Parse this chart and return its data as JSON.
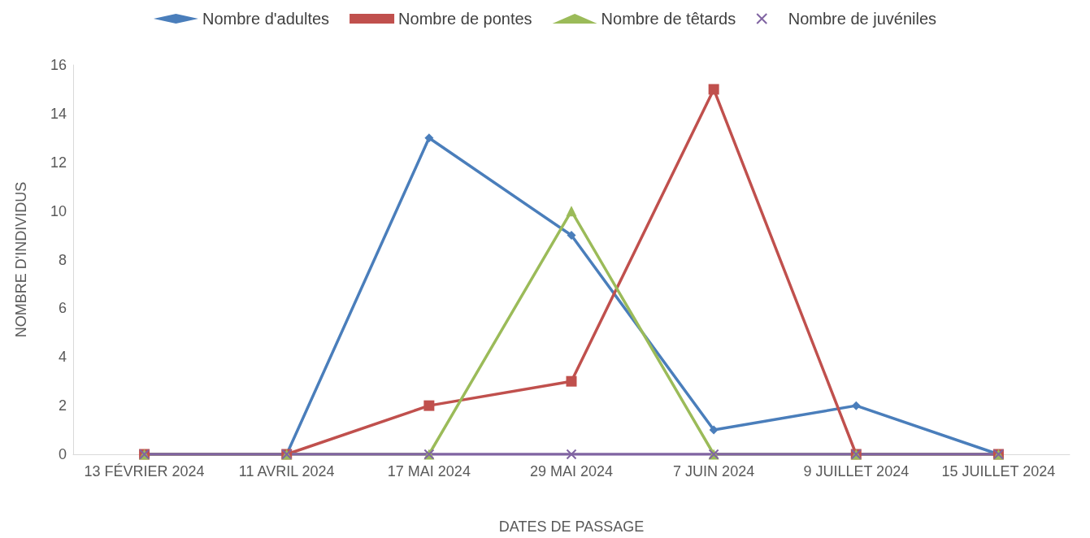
{
  "chart_data": {
    "type": "line",
    "xlabel": "DATES DE PASSAGE",
    "ylabel": "NOMBRE D'INDIVIDUS",
    "categories": [
      "13 FÉVRIER 2024",
      "11 AVRIL 2024",
      "17 MAI 2024",
      "29 MAI 2024",
      "7 JUIN 2024",
      "9 JUILLET 2024",
      "15 JUILLET 2024"
    ],
    "series": [
      {
        "name": "Nombre d'adultes",
        "color": "#4a7ebb",
        "marker": "diamond",
        "values": [
          0,
          0,
          13,
          9,
          1,
          2,
          0
        ]
      },
      {
        "name": "Nombre de pontes",
        "color": "#c0504d",
        "marker": "square",
        "values": [
          0,
          0,
          2,
          3,
          15,
          0,
          0
        ]
      },
      {
        "name": "Nombre de têtards",
        "color": "#9bbb59",
        "marker": "triangle",
        "values": [
          0,
          0,
          0,
          10,
          0,
          0,
          0
        ]
      },
      {
        "name": "Nombre de juvéniles",
        "color": "#8064a2",
        "marker": "cross",
        "values": [
          0,
          0,
          0,
          0,
          0,
          0,
          0
        ]
      }
    ],
    "ylim": [
      0,
      16
    ],
    "yticks": [
      0,
      2,
      4,
      6,
      8,
      10,
      12,
      14,
      16
    ],
    "grid": false,
    "legend": "top",
    "line_style": "solid"
  }
}
